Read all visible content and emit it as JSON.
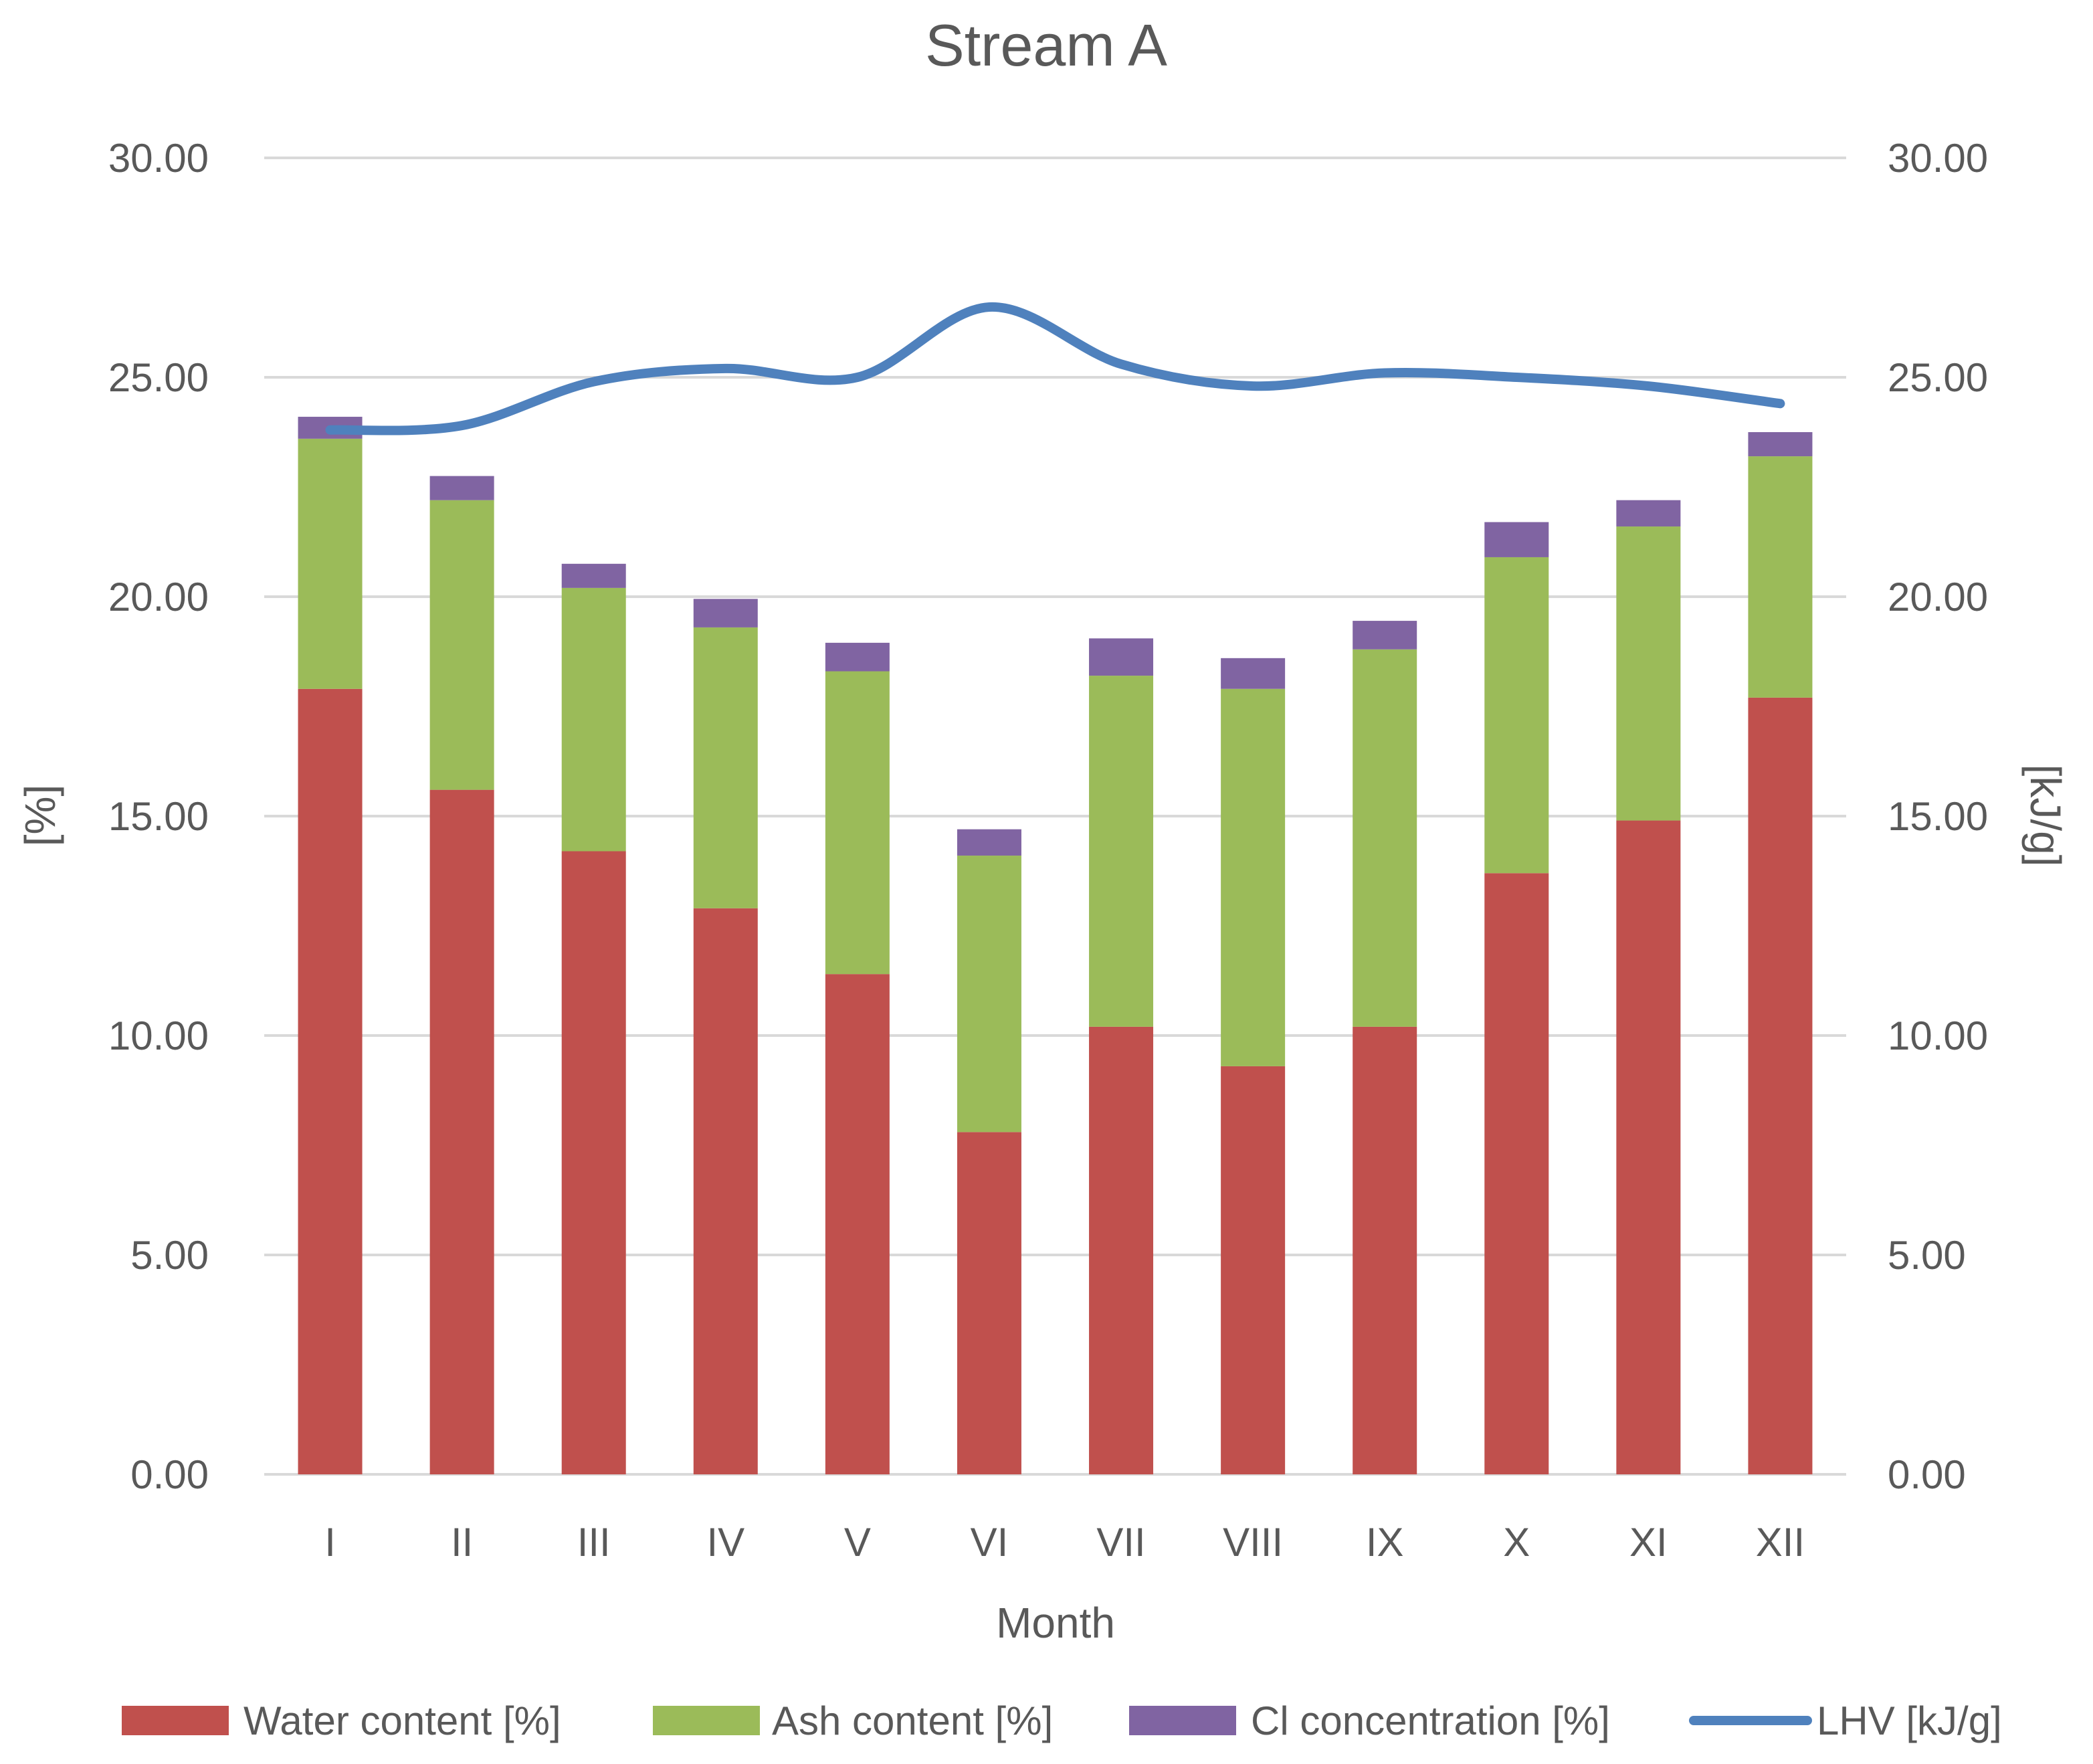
{
  "chart_data": {
    "type": "bar",
    "stacked": true,
    "title": "Stream A",
    "xlabel": "Month",
    "ylabel_left": "[%]",
    "ylabel_right": "[kJ/g]",
    "ylim_left": [
      0,
      30
    ],
    "ylim_right": [
      0,
      30
    ],
    "yticks": [
      "0.00",
      "5.00",
      "10.00",
      "15.00",
      "20.00",
      "25.00",
      "30.00"
    ],
    "categories": [
      "I",
      "II",
      "III",
      "IV",
      "V",
      "VI",
      "VII",
      "VIII",
      "IX",
      "X",
      "XI",
      "XII"
    ],
    "series": [
      {
        "name": "Water content [%]",
        "type": "bar",
        "axis": "left",
        "color": "#c0504d",
        "values": [
          17.9,
          15.6,
          14.2,
          12.9,
          11.4,
          7.8,
          10.2,
          9.3,
          10.2,
          13.7,
          14.9,
          17.7
        ]
      },
      {
        "name": "Ash content [%]",
        "type": "bar",
        "axis": "left",
        "color": "#9bbb59",
        "values": [
          5.7,
          6.6,
          6.0,
          6.4,
          6.9,
          6.3,
          8.0,
          8.6,
          8.6,
          7.2,
          6.7,
          5.5
        ]
      },
      {
        "name": "Cl concentration [%]",
        "type": "bar",
        "axis": "left",
        "color": "#8064a2",
        "values": [
          0.5,
          0.55,
          0.55,
          0.65,
          0.65,
          0.6,
          0.85,
          0.7,
          0.65,
          0.8,
          0.6,
          0.55
        ]
      },
      {
        "name": "LHV [kJ/g]",
        "type": "line",
        "axis": "right",
        "color": "#4f81bd",
        "values": [
          23.8,
          23.9,
          24.9,
          25.2,
          25.0,
          26.6,
          25.3,
          24.8,
          25.1,
          25.0,
          24.8,
          24.4
        ]
      }
    ],
    "grid": true,
    "legend_position": "bottom"
  }
}
